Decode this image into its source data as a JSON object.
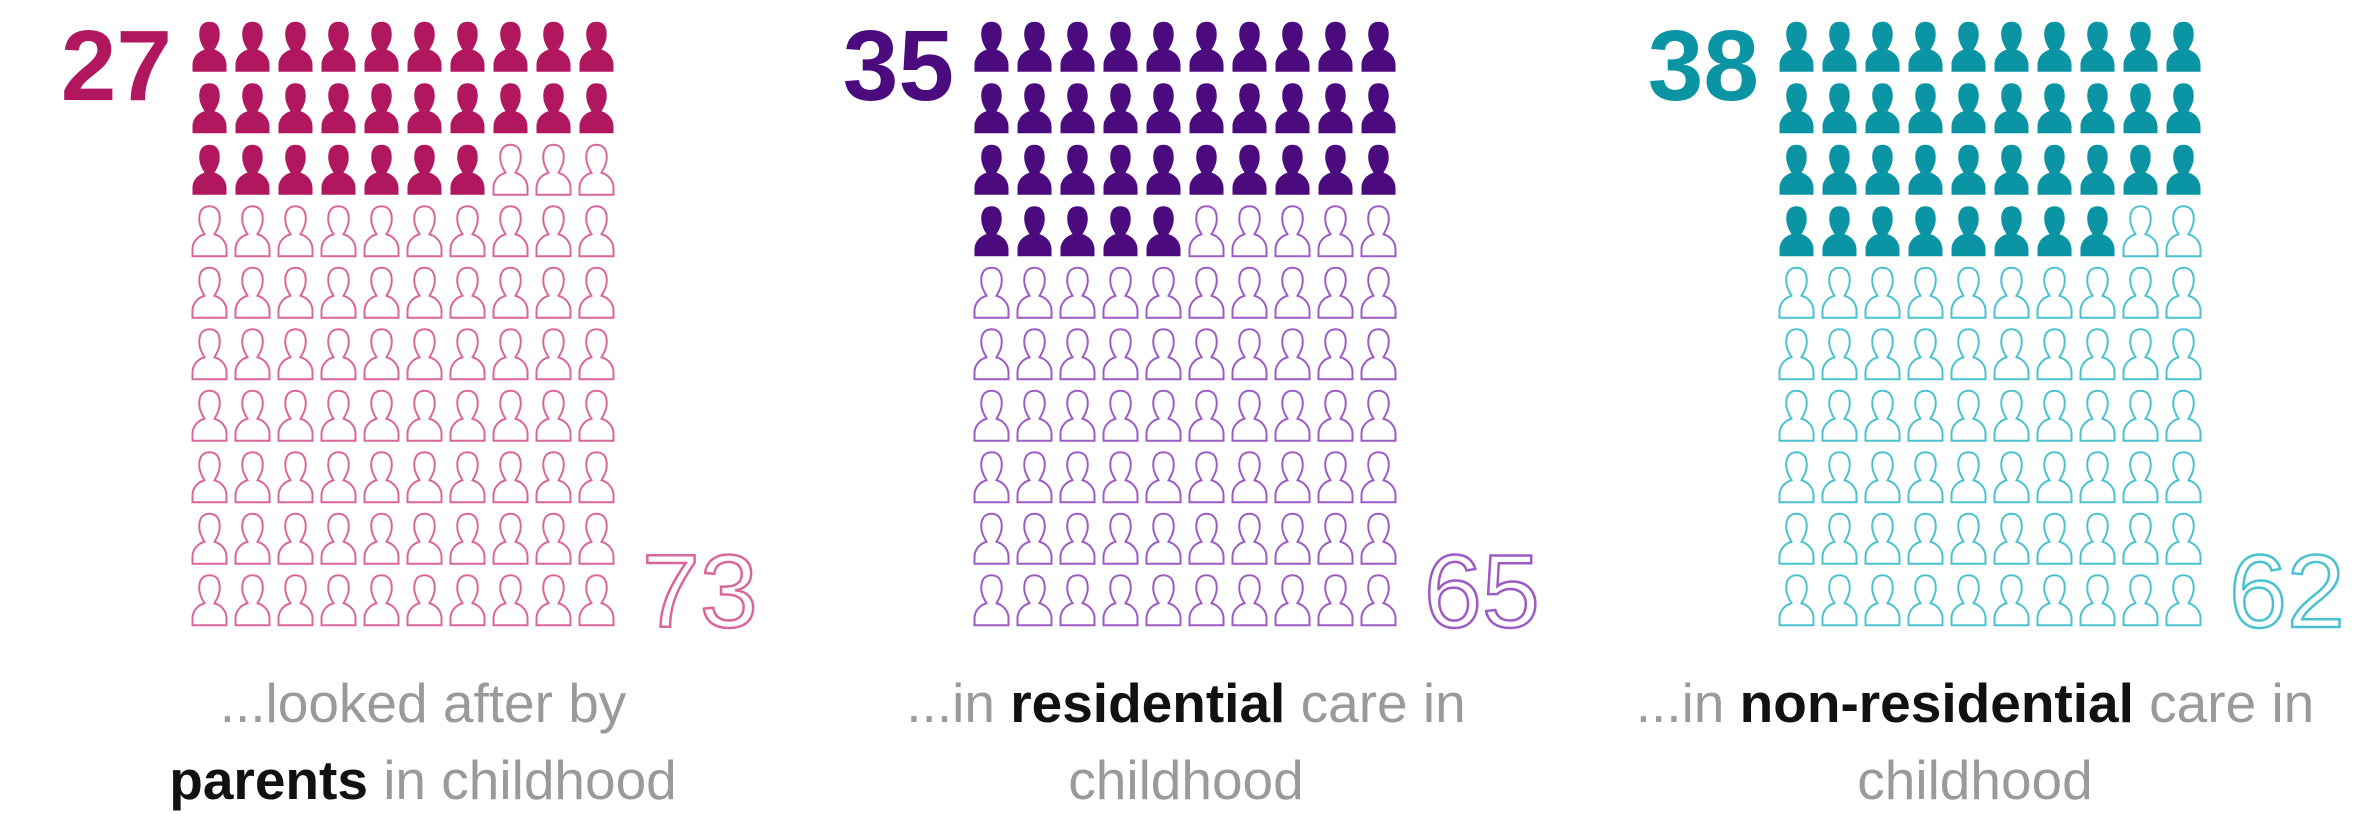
{
  "chart_data": [
    {
      "type": "pictogram",
      "total": 100,
      "filled_value": 27,
      "filled_label": "27",
      "empty_value": 73,
      "empty_label": "73",
      "color": "#B0175F",
      "light_color": "#D9679B",
      "caption": {
        "pre": "...looked after by",
        "bold": "parents",
        "post": " in childhood"
      }
    },
    {
      "type": "pictogram",
      "total": 100,
      "filled_value": 35,
      "filled_label": "35",
      "empty_value": 65,
      "empty_label": "65",
      "color": "#4B0A7E",
      "light_color": "#9D5BC4",
      "caption": {
        "pre": "...in ",
        "bold": "residential",
        "post": " care in childhood"
      }
    },
    {
      "type": "pictogram",
      "total": 100,
      "filled_value": 38,
      "filled_label": "38",
      "empty_value": 62,
      "empty_label": "62",
      "color": "#0B94A3",
      "light_color": "#4BC2CF",
      "caption": {
        "pre": "...in ",
        "bold": "non-residential",
        "post": " care in childhood"
      }
    }
  ]
}
